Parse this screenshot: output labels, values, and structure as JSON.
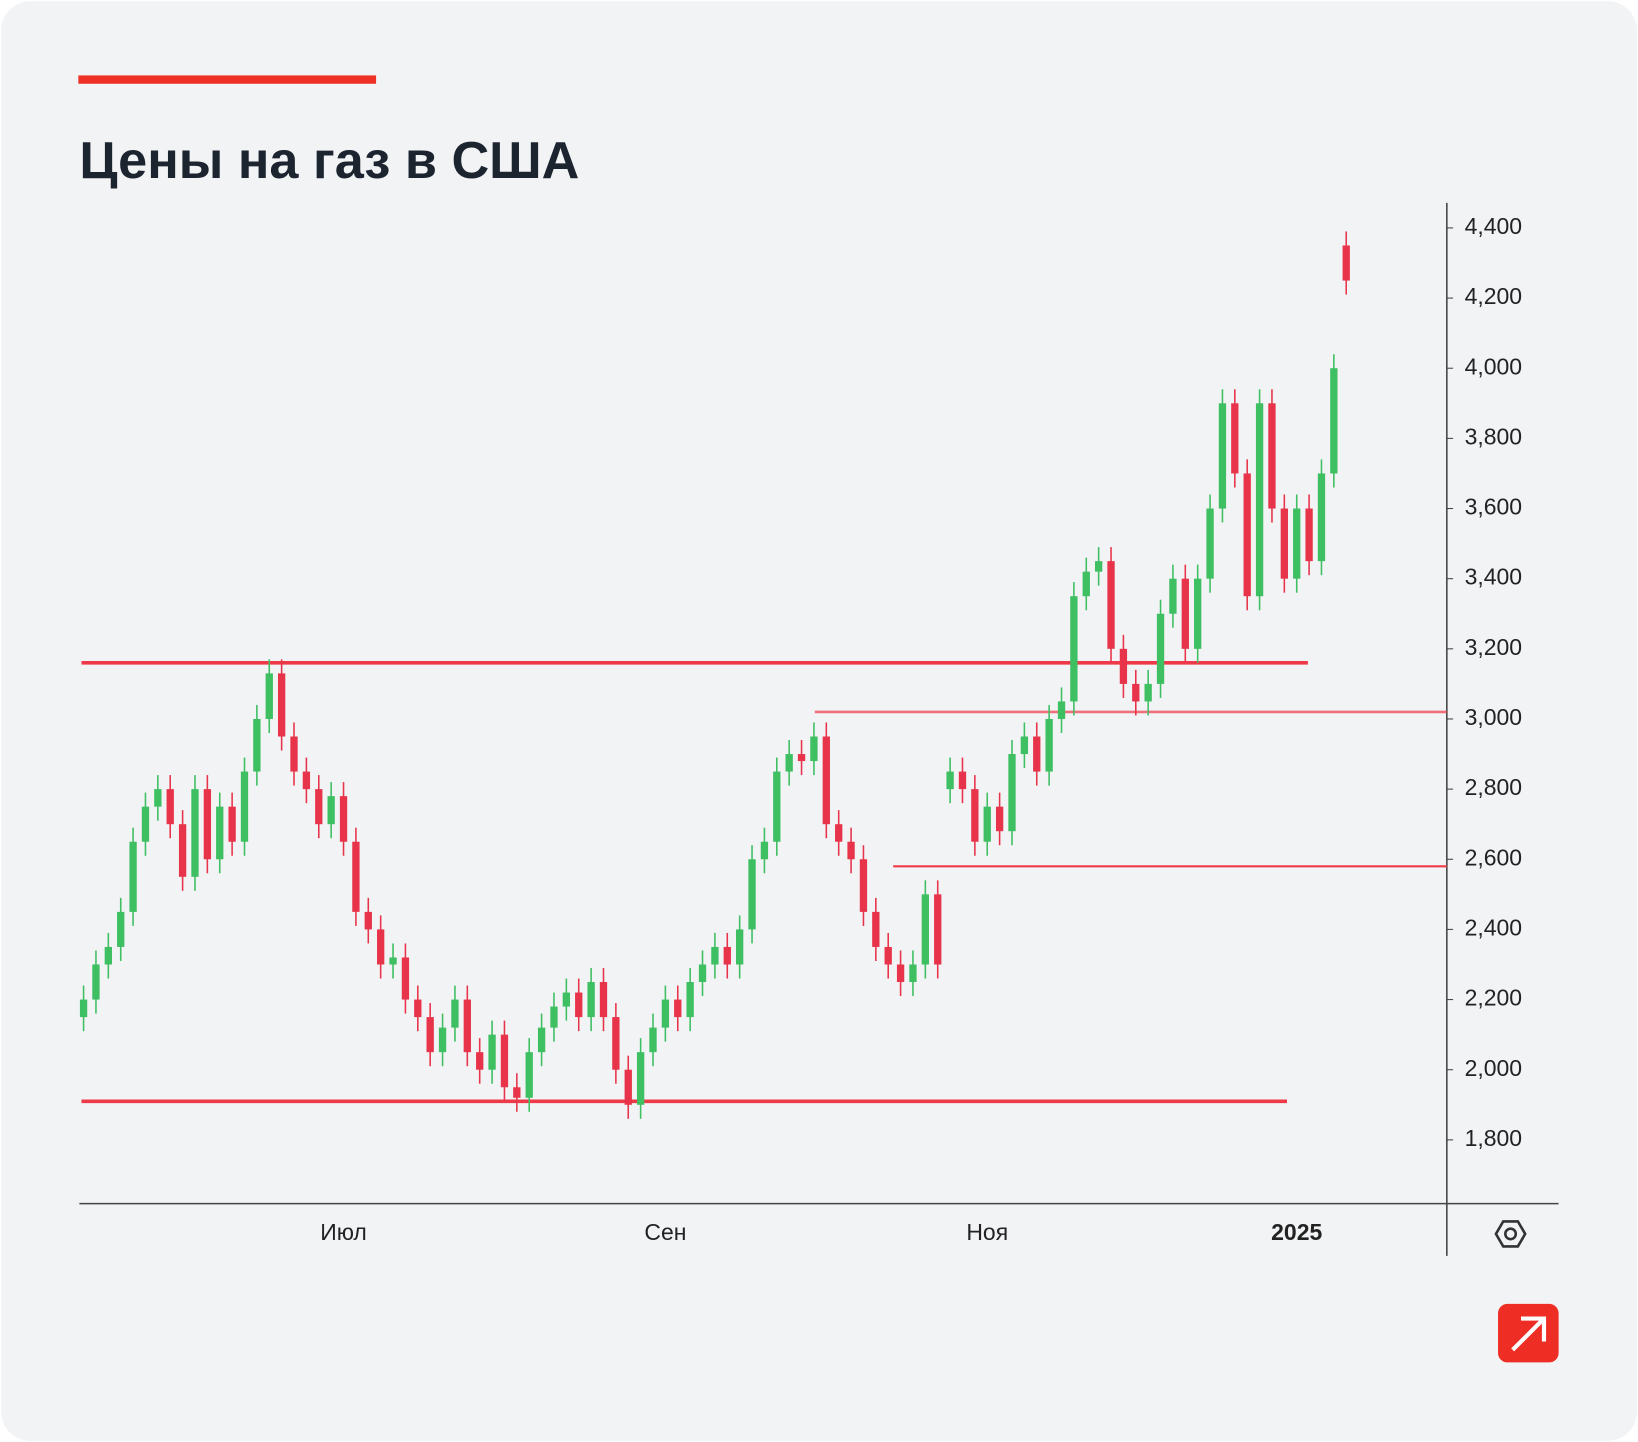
{
  "chart_data": {
    "type": "candlestick",
    "title": "Цены на газ в США",
    "categories": [
      null,
      null,
      null,
      null,
      null,
      null,
      null,
      null,
      null,
      null,
      null,
      null,
      null,
      null,
      null,
      null,
      null,
      null,
      null,
      null,
      null,
      "Июл",
      null,
      null,
      null,
      null,
      null,
      null,
      null,
      null,
      null,
      null,
      null,
      null,
      null,
      null,
      null,
      null,
      null,
      null,
      null,
      null,
      null,
      null,
      null,
      null,
      null,
      "Сен",
      null,
      null,
      null,
      null,
      null,
      null,
      null,
      null,
      null,
      null,
      null,
      null,
      null,
      null,
      null,
      null,
      null,
      null,
      null,
      null,
      null,
      null,
      null,
      null,
      null,
      "Ноя",
      null,
      null,
      null,
      null,
      null,
      null,
      null,
      null,
      null,
      null,
      null,
      null,
      null,
      null,
      null,
      null,
      null,
      null,
      null,
      null,
      null,
      null,
      null,
      null,
      "2025",
      null,
      null,
      null,
      null
    ],
    "open": [
      2150,
      2200,
      2300,
      2350,
      2450,
      2650,
      2750,
      2800,
      2700,
      2550,
      2800,
      2600,
      2750,
      2650,
      2850,
      3000,
      3130,
      2950,
      2850,
      2800,
      2700,
      2780,
      2650,
      2450,
      2400,
      2300,
      2320,
      2200,
      2150,
      2050,
      2120,
      2200,
      2050,
      2000,
      2100,
      1950,
      1920,
      2050,
      2120,
      2180,
      2220,
      2150,
      2250,
      2150,
      2000,
      1900,
      2050,
      2120,
      2200,
      2150,
      2250,
      2300,
      2350,
      2300,
      2400,
      2600,
      2650,
      2850,
      2900,
      2880,
      2950,
      2700,
      2650,
      2600,
      2450,
      2350,
      2300,
      2250,
      2300,
      2500,
      2800,
      2850,
      2800,
      2650,
      2750,
      2680,
      2900,
      2950,
      2850,
      3000,
      3050,
      3350,
      3420,
      3450,
      3200,
      3100,
      3050,
      3100,
      3300,
      3400,
      3200,
      3400,
      3600,
      3900,
      3700,
      3350,
      3900,
      3600,
      3400,
      3600,
      3450,
      3700,
      4350
    ],
    "high": [
      2240,
      2340,
      2390,
      2490,
      2690,
      2790,
      2840,
      2840,
      2740,
      2840,
      2840,
      2790,
      2790,
      2890,
      3040,
      3170,
      3170,
      2990,
      2890,
      2840,
      2820,
      2820,
      2690,
      2490,
      2440,
      2360,
      2360,
      2240,
      2190,
      2160,
      2240,
      2240,
      2090,
      2140,
      2140,
      1990,
      2090,
      2160,
      2220,
      2260,
      2260,
      2290,
      2290,
      2190,
      2040,
      2090,
      2160,
      2240,
      2240,
      2290,
      2340,
      2390,
      2390,
      2440,
      2640,
      2690,
      2890,
      2940,
      2940,
      2990,
      2990,
      2740,
      2690,
      2640,
      2490,
      2390,
      2340,
      2340,
      2540,
      2540,
      2890,
      2890,
      2840,
      2790,
      2790,
      2940,
      2990,
      2990,
      3040,
      3090,
      3390,
      3460,
      3490,
      3490,
      3240,
      3140,
      3140,
      3340,
      3440,
      3440,
      3440,
      3640,
      3940,
      3940,
      3740,
      3940,
      3940,
      3640,
      3640,
      3640,
      3740,
      4040,
      4390
    ],
    "low": [
      2110,
      2160,
      2260,
      2310,
      2410,
      2610,
      2710,
      2660,
      2510,
      2510,
      2560,
      2560,
      2610,
      2610,
      2810,
      2960,
      2910,
      2810,
      2760,
      2660,
      2660,
      2610,
      2410,
      2360,
      2260,
      2260,
      2160,
      2110,
      2010,
      2010,
      2080,
      2010,
      1960,
      1960,
      1910,
      1880,
      1880,
      2010,
      2080,
      2140,
      2110,
      2110,
      2110,
      1960,
      1860,
      1860,
      2010,
      2080,
      2110,
      2110,
      2210,
      2260,
      2260,
      2260,
      2360,
      2560,
      2610,
      2810,
      2840,
      2840,
      2660,
      2610,
      2560,
      2410,
      2310,
      2260,
      2210,
      2210,
      2260,
      2260,
      2760,
      2760,
      2610,
      2610,
      2640,
      2640,
      2860,
      2810,
      2810,
      2960,
      3010,
      3310,
      3380,
      3160,
      3060,
      3010,
      3010,
      3060,
      3260,
      3160,
      3160,
      3360,
      3560,
      3660,
      3310,
      3310,
      3560,
      3360,
      3360,
      3410,
      3410,
      3660,
      4210
    ],
    "close": [
      2200,
      2300,
      2350,
      2450,
      2650,
      2750,
      2800,
      2700,
      2550,
      2800,
      2600,
      2750,
      2650,
      2850,
      3000,
      3130,
      2950,
      2850,
      2800,
      2700,
      2780,
      2650,
      2450,
      2400,
      2300,
      2320,
      2200,
      2150,
      2050,
      2120,
      2200,
      2050,
      2000,
      2100,
      1950,
      1920,
      2050,
      2120,
      2180,
      2220,
      2150,
      2250,
      2150,
      2000,
      1900,
      2050,
      2120,
      2200,
      2150,
      2250,
      2300,
      2350,
      2300,
      2400,
      2600,
      2650,
      2850,
      2900,
      2880,
      2950,
      2700,
      2650,
      2600,
      2450,
      2350,
      2300,
      2250,
      2300,
      2500,
      2300,
      2850,
      2800,
      2650,
      2750,
      2680,
      2900,
      2950,
      2850,
      3000,
      3050,
      3350,
      3420,
      3450,
      3200,
      3100,
      3050,
      3100,
      3300,
      3400,
      3200,
      3400,
      3600,
      3900,
      3700,
      3350,
      3900,
      3600,
      3400,
      3600,
      3450,
      3700,
      4000,
      4250
    ],
    "up_color": "#3dbf62",
    "down_color": "#e8344a",
    "levels": [
      3160,
      3020,
      2580,
      1910
    ],
    "level_color": "#ee3a48",
    "ylim": [
      1620,
      4470
    ],
    "yticks": [
      {
        "value": 1800,
        "label": "1,800"
      },
      {
        "value": 2000,
        "label": "2,000"
      },
      {
        "value": 2200,
        "label": "2,200"
      },
      {
        "value": 2400,
        "label": "2,400"
      },
      {
        "value": 2600,
        "label": "2,600"
      },
      {
        "value": 2800,
        "label": "2,800"
      },
      {
        "value": 3000,
        "label": "3,000"
      },
      {
        "value": 3200,
        "label": "3,200"
      },
      {
        "value": 3400,
        "label": "3,400"
      },
      {
        "value": 3600,
        "label": "3,600"
      },
      {
        "value": 3800,
        "label": "3,800"
      },
      {
        "value": 4000,
        "label": "4,000"
      },
      {
        "value": 4200,
        "label": "4,200"
      },
      {
        "value": 4400,
        "label": "4,400"
      }
    ]
  }
}
